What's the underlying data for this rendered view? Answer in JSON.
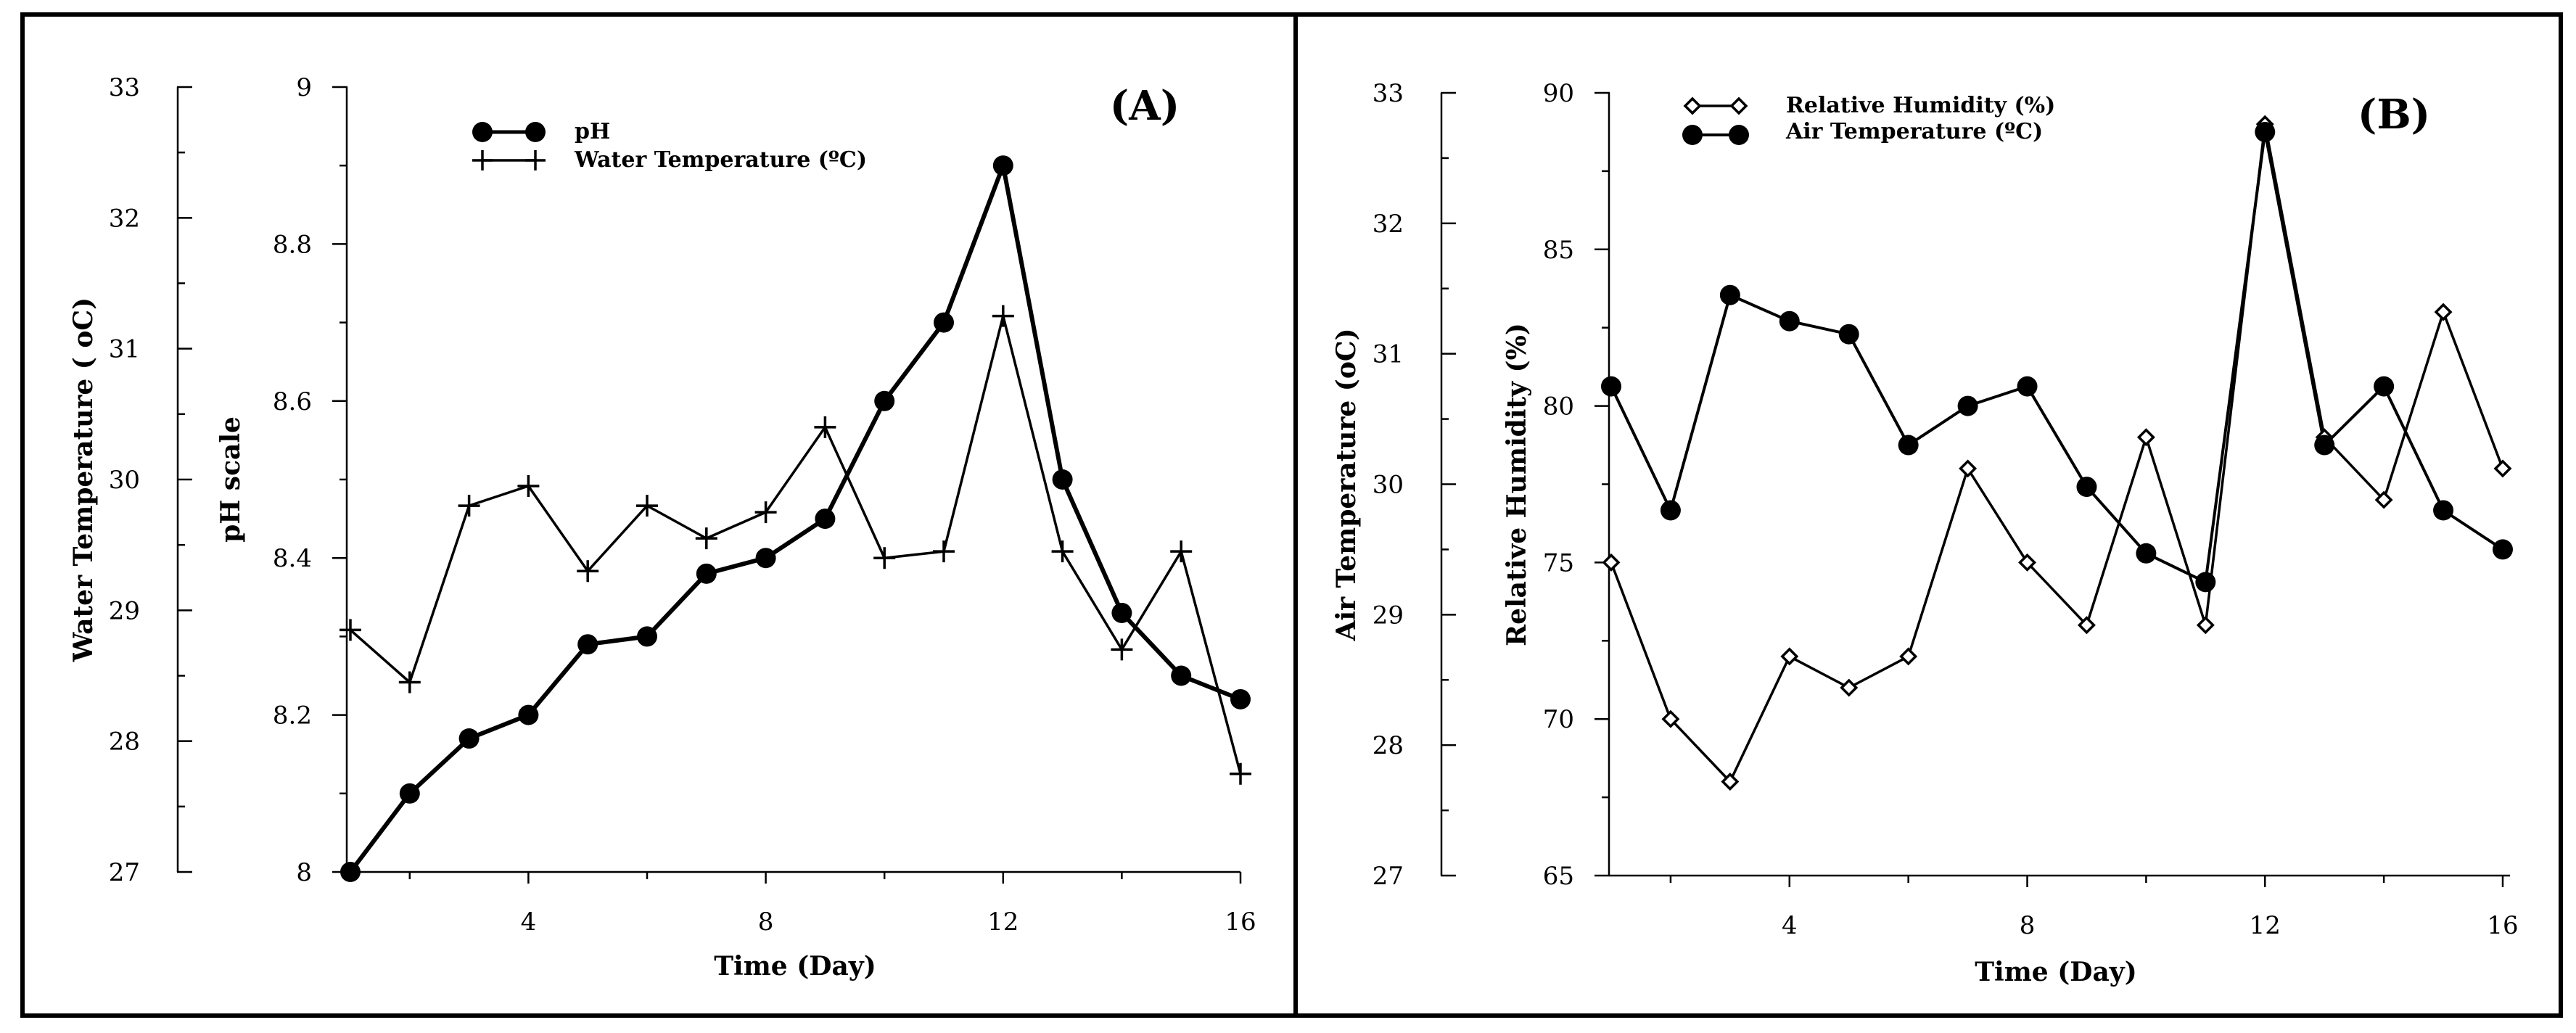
{
  "chart_data": [
    {
      "type": "line",
      "panel_label": "(A)",
      "xlabel": "Time (Day)",
      "x": [
        1,
        2,
        3,
        4,
        5,
        6,
        7,
        8,
        9,
        10,
        11,
        12,
        13,
        14,
        15,
        16
      ],
      "xticks": [
        4,
        8,
        12,
        16
      ],
      "xlim": [
        1,
        16
      ],
      "left_axis": {
        "label": "Water Temperature ( oC)",
        "ylim": [
          27,
          33
        ],
        "ticks": [
          27,
          28,
          29,
          30,
          31,
          32,
          33
        ],
        "tick_labels": [
          "27",
          "28",
          "29",
          "30",
          "31",
          "32",
          "33"
        ]
      },
      "right_axis": {
        "label": "pH scale",
        "ylim": [
          8,
          9
        ],
        "ticks": [
          8,
          8.2,
          8.4,
          8.6,
          8.8,
          9
        ],
        "tick_labels": [
          "8",
          "8.2",
          "8.4",
          "8.6",
          "8.8",
          "9"
        ]
      },
      "series": [
        {
          "name": "pH",
          "legend_label": "pH",
          "axis": "right",
          "marker": "circle",
          "values": [
            8.0,
            8.1,
            8.17,
            8.2,
            8.29,
            8.3,
            8.38,
            8.4,
            8.45,
            8.6,
            8.7,
            8.9,
            8.5,
            8.33,
            8.25,
            8.22
          ]
        },
        {
          "name": "Water Temperature",
          "legend_label": "Water Temperature (ºC)",
          "axis": "left",
          "marker": "plus",
          "values": [
            28.85,
            28.45,
            29.8,
            29.95,
            29.3,
            29.8,
            29.55,
            29.75,
            30.4,
            29.4,
            29.45,
            31.25,
            29.45,
            28.7,
            29.45,
            27.75
          ]
        }
      ]
    },
    {
      "type": "line",
      "panel_label": "(B)",
      "xlabel": "Time (Day)",
      "x": [
        1,
        2,
        3,
        4,
        5,
        6,
        7,
        8,
        9,
        10,
        11,
        12,
        13,
        14,
        15,
        16
      ],
      "xticks": [
        4,
        8,
        12,
        16
      ],
      "xlim": [
        1,
        16
      ],
      "left_axis": {
        "label": "Air Temperature (oC)",
        "ylim": [
          27,
          33
        ],
        "ticks": [
          27,
          28,
          29,
          30,
          31,
          32,
          33
        ],
        "tick_labels": [
          "27",
          "28",
          "29",
          "30",
          "31",
          "32",
          "33"
        ]
      },
      "right_axis": {
        "label": "Relative Humidity (%)",
        "ylim": [
          65,
          90
        ],
        "ticks": [
          65,
          70,
          75,
          80,
          85,
          90
        ],
        "tick_labels": [
          "65",
          "70",
          "75",
          "80",
          "85",
          "90"
        ]
      },
      "series": [
        {
          "name": "Relative Humidity",
          "legend_label": "Relative Humidity (%)",
          "axis": "right",
          "marker": "diamond",
          "values": [
            75,
            70,
            68,
            72,
            71,
            72,
            78,
            75,
            73,
            79,
            73,
            89,
            79,
            77,
            83,
            78
          ]
        },
        {
          "name": "Air Temperature",
          "legend_label": "Air Temperature (ºC)",
          "axis": "left",
          "marker": "circle",
          "values": [
            30.75,
            29.8,
            31.45,
            31.25,
            31.15,
            30.3,
            30.6,
            30.75,
            29.98,
            29.47,
            29.25,
            32.7,
            30.3,
            30.75,
            29.8,
            29.5
          ]
        }
      ]
    }
  ]
}
